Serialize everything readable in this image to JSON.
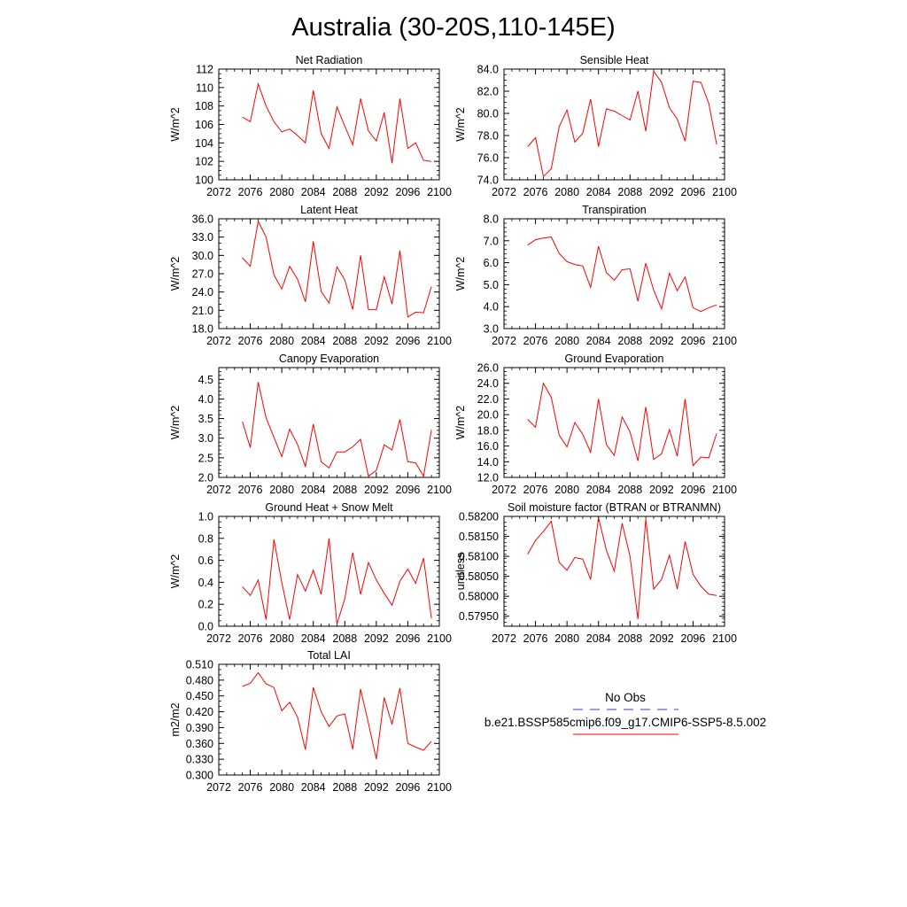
{
  "figure": {
    "title": "Australia (30-20S,110-145E)"
  },
  "legend": {
    "obs_label": "No Obs",
    "obs_color": "#3a3acc",
    "model_label": "b.e21.BSSP585cmip6.f09_g17.CMIP6-SSP5-8.5.002",
    "model_color": "#ff0000"
  },
  "chart_data": [
    {
      "type": "line",
      "title": "Net Radiation",
      "ylabel": "W/m^2",
      "xlabel": "",
      "xlim": [
        2072,
        2100
      ],
      "ylim": [
        100,
        112
      ],
      "xticks": [
        2072,
        2076,
        2080,
        2084,
        2088,
        2092,
        2096,
        2100
      ],
      "xtick_labels": [
        "2072",
        "2076",
        "2080",
        "2084",
        "2088",
        "2092",
        "2096",
        "2100"
      ],
      "yticks": [
        100,
        102,
        104,
        106,
        108,
        110,
        112
      ],
      "ytick_labels": [
        "100",
        "102",
        "104",
        "106",
        "108",
        "110",
        "112"
      ],
      "yminor": 0.5,
      "color": "#ff0000",
      "x": [
        2075,
        2076,
        2077,
        2078,
        2079,
        2080,
        2081,
        2082,
        2083,
        2084,
        2085,
        2086,
        2087,
        2088,
        2089,
        2090,
        2091,
        2092,
        2093,
        2094,
        2095,
        2096,
        2097,
        2098,
        2099
      ],
      "values": [
        106.8,
        106.3,
        110.4,
        108.0,
        106.3,
        105.2,
        105.5,
        104.8,
        104.0,
        109.7,
        105.0,
        103.4,
        107.9,
        105.8,
        103.8,
        108.8,
        105.3,
        104.2,
        107.3,
        101.8,
        108.8,
        103.4,
        104.0,
        102.1,
        102.0
      ]
    },
    {
      "type": "line",
      "title": "Sensible Heat",
      "ylabel": "W/m^2",
      "xlabel": "",
      "xlim": [
        2072,
        2100
      ],
      "ylim": [
        74,
        84
      ],
      "xticks": [
        2072,
        2076,
        2080,
        2084,
        2088,
        2092,
        2096,
        2100
      ],
      "xtick_labels": [
        "2072",
        "2076",
        "2080",
        "2084",
        "2088",
        "2092",
        "2096",
        "2100"
      ],
      "yticks": [
        74,
        76,
        78,
        80,
        82,
        84
      ],
      "ytick_labels": [
        "74.0",
        "76.0",
        "78.0",
        "80.0",
        "82.0",
        "84.0"
      ],
      "yminor": 0.5,
      "color": "#ff0000",
      "x": [
        2075,
        2076,
        2077,
        2078,
        2079,
        2080,
        2081,
        2082,
        2083,
        2084,
        2085,
        2086,
        2087,
        2088,
        2089,
        2090,
        2091,
        2092,
        2093,
        2094,
        2095,
        2096,
        2097,
        2098,
        2099
      ],
      "values": [
        77.0,
        77.8,
        74.3,
        75.0,
        78.8,
        80.3,
        77.4,
        78.2,
        81.3,
        77.0,
        80.4,
        80.2,
        79.8,
        79.4,
        82.0,
        78.4,
        83.8,
        82.8,
        80.5,
        79.5,
        77.5,
        82.9,
        82.8,
        80.9,
        77.2
      ]
    },
    {
      "type": "line",
      "title": "Latent Heat",
      "ylabel": "W/m^2",
      "xlabel": "",
      "xlim": [
        2072,
        2100
      ],
      "ylim": [
        18,
        36
      ],
      "xticks": [
        2072,
        2076,
        2080,
        2084,
        2088,
        2092,
        2096,
        2100
      ],
      "xtick_labels": [
        "2072",
        "2076",
        "2080",
        "2084",
        "2088",
        "2092",
        "2096",
        "2100"
      ],
      "yticks": [
        18,
        21,
        24,
        27,
        30,
        33,
        36
      ],
      "ytick_labels": [
        "18.0",
        "21.0",
        "24.0",
        "27.0",
        "30.0",
        "33.0",
        "36.0"
      ],
      "yminor": 1,
      "color": "#ff0000",
      "x": [
        2075,
        2076,
        2077,
        2078,
        2079,
        2080,
        2081,
        2082,
        2083,
        2084,
        2085,
        2086,
        2087,
        2088,
        2089,
        2090,
        2091,
        2092,
        2093,
        2094,
        2095,
        2096,
        2097,
        2098,
        2099
      ],
      "values": [
        29.6,
        28.2,
        35.6,
        33.0,
        26.8,
        24.5,
        28.2,
        26.1,
        22.4,
        32.3,
        24.1,
        22.2,
        28.1,
        26.0,
        21.1,
        30.0,
        21.1,
        21.1,
        26.5,
        22.0,
        30.8,
        19.9,
        20.7,
        20.6,
        24.9
      ]
    },
    {
      "type": "line",
      "title": "Transpiration",
      "ylabel": "W/m^2",
      "xlabel": "",
      "xlim": [
        2072,
        2100
      ],
      "ylim": [
        3,
        8
      ],
      "xticks": [
        2072,
        2076,
        2080,
        2084,
        2088,
        2092,
        2096,
        2100
      ],
      "xtick_labels": [
        "2072",
        "2076",
        "2080",
        "2084",
        "2088",
        "2092",
        "2096",
        "2100"
      ],
      "yticks": [
        3,
        4,
        5,
        6,
        7,
        8
      ],
      "ytick_labels": [
        "3.0",
        "4.0",
        "5.0",
        "6.0",
        "7.0",
        "8.0"
      ],
      "yminor": 0.2,
      "color": "#ff0000",
      "x": [
        2075,
        2076,
        2077,
        2078,
        2079,
        2080,
        2081,
        2082,
        2083,
        2084,
        2085,
        2086,
        2087,
        2088,
        2089,
        2090,
        2091,
        2092,
        2093,
        2094,
        2095,
        2096,
        2097,
        2098,
        2099
      ],
      "values": [
        6.8,
        7.05,
        7.12,
        7.17,
        6.42,
        6.05,
        5.92,
        5.85,
        4.88,
        6.75,
        5.55,
        5.2,
        5.68,
        5.72,
        4.25,
        5.98,
        4.75,
        3.9,
        5.52,
        4.72,
        5.35,
        3.95,
        3.78,
        3.95,
        4.08
      ]
    },
    {
      "type": "line",
      "title": "Canopy Evaporation",
      "ylabel": "W/m^2",
      "xlabel": "",
      "xlim": [
        2072,
        2100
      ],
      "ylim": [
        2.0,
        4.8
      ],
      "xticks": [
        2072,
        2076,
        2080,
        2084,
        2088,
        2092,
        2096,
        2100
      ],
      "xtick_labels": [
        "2072",
        "2076",
        "2080",
        "2084",
        "2088",
        "2092",
        "2096",
        "2100"
      ],
      "yticks": [
        2.0,
        2.5,
        3.0,
        3.5,
        4.0,
        4.5
      ],
      "ytick_labels": [
        "2.0",
        "2.5",
        "3.0",
        "3.5",
        "4.0",
        "4.5"
      ],
      "yminor": 0.1,
      "color": "#ff0000",
      "x": [
        2075,
        2076,
        2077,
        2078,
        2079,
        2080,
        2081,
        2082,
        2083,
        2084,
        2085,
        2086,
        2087,
        2088,
        2089,
        2090,
        2091,
        2092,
        2093,
        2094,
        2095,
        2096,
        2097,
        2098,
        2099
      ],
      "values": [
        3.42,
        2.76,
        4.43,
        3.52,
        3.02,
        2.53,
        3.23,
        2.84,
        2.28,
        3.36,
        2.4,
        2.24,
        2.65,
        2.65,
        2.78,
        2.97,
        2.03,
        2.18,
        2.83,
        2.7,
        3.48,
        2.4,
        2.37,
        2.03,
        3.21
      ]
    },
    {
      "type": "line",
      "title": "Ground Evaporation",
      "ylabel": "W/m^2",
      "xlabel": "",
      "xlim": [
        2072,
        2100
      ],
      "ylim": [
        12,
        26
      ],
      "xticks": [
        2072,
        2076,
        2080,
        2084,
        2088,
        2092,
        2096,
        2100
      ],
      "xtick_labels": [
        "2072",
        "2076",
        "2080",
        "2084",
        "2088",
        "2092",
        "2096",
        "2100"
      ],
      "yticks": [
        12,
        14,
        16,
        18,
        20,
        22,
        24,
        26
      ],
      "ytick_labels": [
        "12.0",
        "14.0",
        "16.0",
        "18.0",
        "20.0",
        "22.0",
        "24.0",
        "26.0"
      ],
      "yminor": 0.5,
      "color": "#ff0000",
      "x": [
        2075,
        2076,
        2077,
        2078,
        2079,
        2080,
        2081,
        2082,
        2083,
        2084,
        2085,
        2086,
        2087,
        2088,
        2089,
        2090,
        2091,
        2092,
        2093,
        2094,
        2095,
        2096,
        2097,
        2098,
        2099
      ],
      "values": [
        19.4,
        18.4,
        24.0,
        22.2,
        17.4,
        15.9,
        19.0,
        17.5,
        15.2,
        22.0,
        16.2,
        14.8,
        19.7,
        17.8,
        14.1,
        21.0,
        14.3,
        15.0,
        18.1,
        14.7,
        22.0,
        13.5,
        14.6,
        14.5,
        17.6
      ]
    },
    {
      "type": "line",
      "title": "Ground Heat + Snow Melt",
      "ylabel": "W/m^2",
      "xlabel": "",
      "xlim": [
        2072,
        2100
      ],
      "ylim": [
        0,
        1
      ],
      "xticks": [
        2072,
        2076,
        2080,
        2084,
        2088,
        2092,
        2096,
        2100
      ],
      "xtick_labels": [
        "2072",
        "2076",
        "2080",
        "2084",
        "2088",
        "2092",
        "2096",
        "2100"
      ],
      "yticks": [
        0,
        0.2,
        0.4,
        0.6,
        0.8,
        1.0
      ],
      "ytick_labels": [
        "0.0",
        "0.2",
        "0.4",
        "0.6",
        "0.8",
        "1.0"
      ],
      "yminor": 0.05,
      "color": "#ff0000",
      "x": [
        2075,
        2076,
        2077,
        2078,
        2079,
        2080,
        2081,
        2082,
        2083,
        2084,
        2085,
        2086,
        2087,
        2088,
        2089,
        2090,
        2091,
        2092,
        2093,
        2094,
        2095,
        2096,
        2097,
        2098,
        2099
      ],
      "values": [
        0.36,
        0.28,
        0.42,
        0.06,
        0.79,
        0.4,
        0.06,
        0.47,
        0.32,
        0.51,
        0.29,
        0.8,
        0.02,
        0.25,
        0.67,
        0.29,
        0.58,
        0.42,
        0.3,
        0.19,
        0.41,
        0.52,
        0.39,
        0.62,
        0.07
      ]
    },
    {
      "type": "line",
      "title": "Soil moisture factor (BTRAN or BTRANMN)",
      "ylabel": "unitless",
      "xlabel": "",
      "xlim": [
        2072,
        2100
      ],
      "ylim": [
        0.57925,
        0.582
      ],
      "xticks": [
        2072,
        2076,
        2080,
        2084,
        2088,
        2092,
        2096,
        2100
      ],
      "xtick_labels": [
        "2072",
        "2076",
        "2080",
        "2084",
        "2088",
        "2092",
        "2096",
        "2100"
      ],
      "yticks": [
        0.5795,
        0.58,
        0.5805,
        0.581,
        0.5815,
        0.582
      ],
      "ytick_labels": [
        "0.57950",
        "0.58000",
        "0.58050",
        "0.58100",
        "0.58150",
        "0.58200"
      ],
      "yminor": 0.0001,
      "color": "#ff0000",
      "x": [
        2075,
        2076,
        2077,
        2078,
        2079,
        2080,
        2081,
        2082,
        2083,
        2084,
        2085,
        2086,
        2087,
        2088,
        2089,
        2090,
        2091,
        2092,
        2093,
        2094,
        2095,
        2096,
        2097,
        2098,
        2099
      ],
      "values": [
        0.58105,
        0.5814,
        0.58162,
        0.58188,
        0.58085,
        0.58065,
        0.58097,
        0.58093,
        0.58042,
        0.58197,
        0.58115,
        0.58063,
        0.58183,
        0.581,
        0.57943,
        0.58193,
        0.58018,
        0.58042,
        0.58103,
        0.58018,
        0.58137,
        0.58055,
        0.58025,
        0.58005,
        0.58002
      ]
    },
    {
      "type": "line",
      "title": "Total LAI",
      "ylabel": "m2/m2",
      "xlabel": "",
      "xlim": [
        2072,
        2100
      ],
      "ylim": [
        0.3,
        0.51
      ],
      "xticks": [
        2072,
        2076,
        2080,
        2084,
        2088,
        2092,
        2096,
        2100
      ],
      "xtick_labels": [
        "2072",
        "2076",
        "2080",
        "2084",
        "2088",
        "2092",
        "2096",
        "2100"
      ],
      "yticks": [
        0.3,
        0.33,
        0.36,
        0.39,
        0.42,
        0.45,
        0.48,
        0.51
      ],
      "ytick_labels": [
        "0.300",
        "0.330",
        "0.360",
        "0.390",
        "0.420",
        "0.450",
        "0.480",
        "0.510"
      ],
      "yminor": 0.01,
      "color": "#ff0000",
      "x": [
        2075,
        2076,
        2077,
        2078,
        2079,
        2080,
        2081,
        2082,
        2083,
        2084,
        2085,
        2086,
        2087,
        2088,
        2089,
        2090,
        2091,
        2092,
        2093,
        2094,
        2095,
        2096,
        2097,
        2098,
        2099
      ],
      "values": [
        0.468,
        0.474,
        0.494,
        0.473,
        0.466,
        0.422,
        0.438,
        0.41,
        0.348,
        0.466,
        0.42,
        0.392,
        0.412,
        0.416,
        0.349,
        0.463,
        0.398,
        0.33,
        0.447,
        0.396,
        0.465,
        0.36,
        0.353,
        0.347,
        0.364
      ]
    }
  ]
}
